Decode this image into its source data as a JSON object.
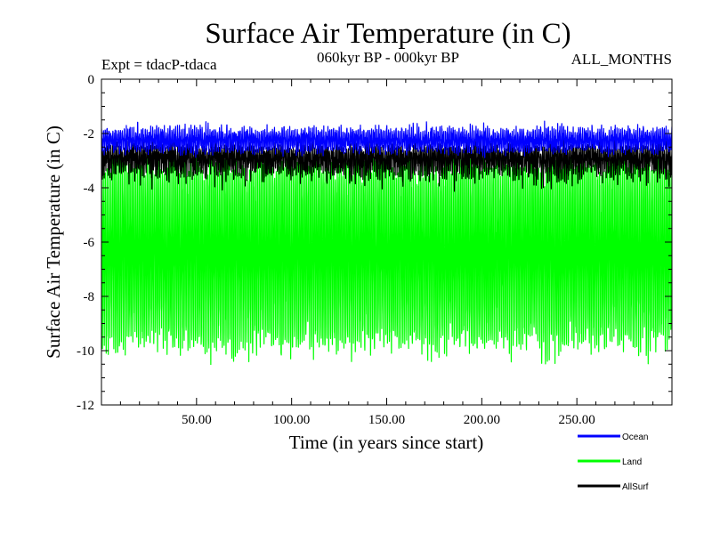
{
  "chart_data": {
    "type": "line",
    "title": "Surface Air Temperature (in C)",
    "subtitle": "060kyr BP - 000kyr BP",
    "experiment_label": "Expt = tdacP-tdaca",
    "months_label": "ALL_MONTHS",
    "xlabel": "Time (in years since start)",
    "ylabel": "Surface Air Temperature (in C)",
    "xlim": [
      0,
      300
    ],
    "ylim": [
      -12,
      0
    ],
    "x_ticks": [
      50,
      100,
      150,
      200,
      250
    ],
    "x_tick_labels": [
      "50.00",
      "100.00",
      "150.00",
      "200.00",
      "250.00"
    ],
    "y_ticks": [
      0,
      -2,
      -4,
      -6,
      -8,
      -10,
      -12
    ],
    "y_tick_labels": [
      "0",
      "-2",
      "-4",
      "-6",
      "-8",
      "-10",
      "-12"
    ],
    "series": [
      {
        "name": "Land",
        "color": "#00ff00",
        "samples_per_year": 12,
        "annual_cycle": {
          "max_mean": -3.2,
          "min_mean": -9.6,
          "max_noise": 0.35,
          "min_noise": 0.4
        },
        "envelope": {
          "upper_approx": -3.0,
          "lower_approx": -10.5,
          "extreme_low": -10.9
        }
      },
      {
        "name": "AllSurf",
        "color": "#000000",
        "samples_per_year": 12,
        "annual_cycle": {
          "max_mean": -2.6,
          "min_mean": -3.3,
          "max_noise": 0.15,
          "min_noise": 0.3
        },
        "envelope": {
          "upper_approx": -2.4,
          "lower_approx": -3.8,
          "extreme_low": -4.3
        }
      },
      {
        "name": "Ocean",
        "color": "#0000ff",
        "samples_per_year": 12,
        "annual_cycle": {
          "max_mean": -1.95,
          "min_mean": -2.55,
          "max_noise": 0.15,
          "min_noise": 0.12
        },
        "envelope": {
          "upper_approx": -1.7,
          "lower_approx": -2.8,
          "extreme_low": -2.9
        }
      }
    ],
    "legend": {
      "position": "bottom-right",
      "entries": [
        {
          "label": "Ocean",
          "color": "#0000ff"
        },
        {
          "label": "Land",
          "color": "#00ff00"
        },
        {
          "label": "AllSurf",
          "color": "#000000"
        }
      ]
    }
  }
}
